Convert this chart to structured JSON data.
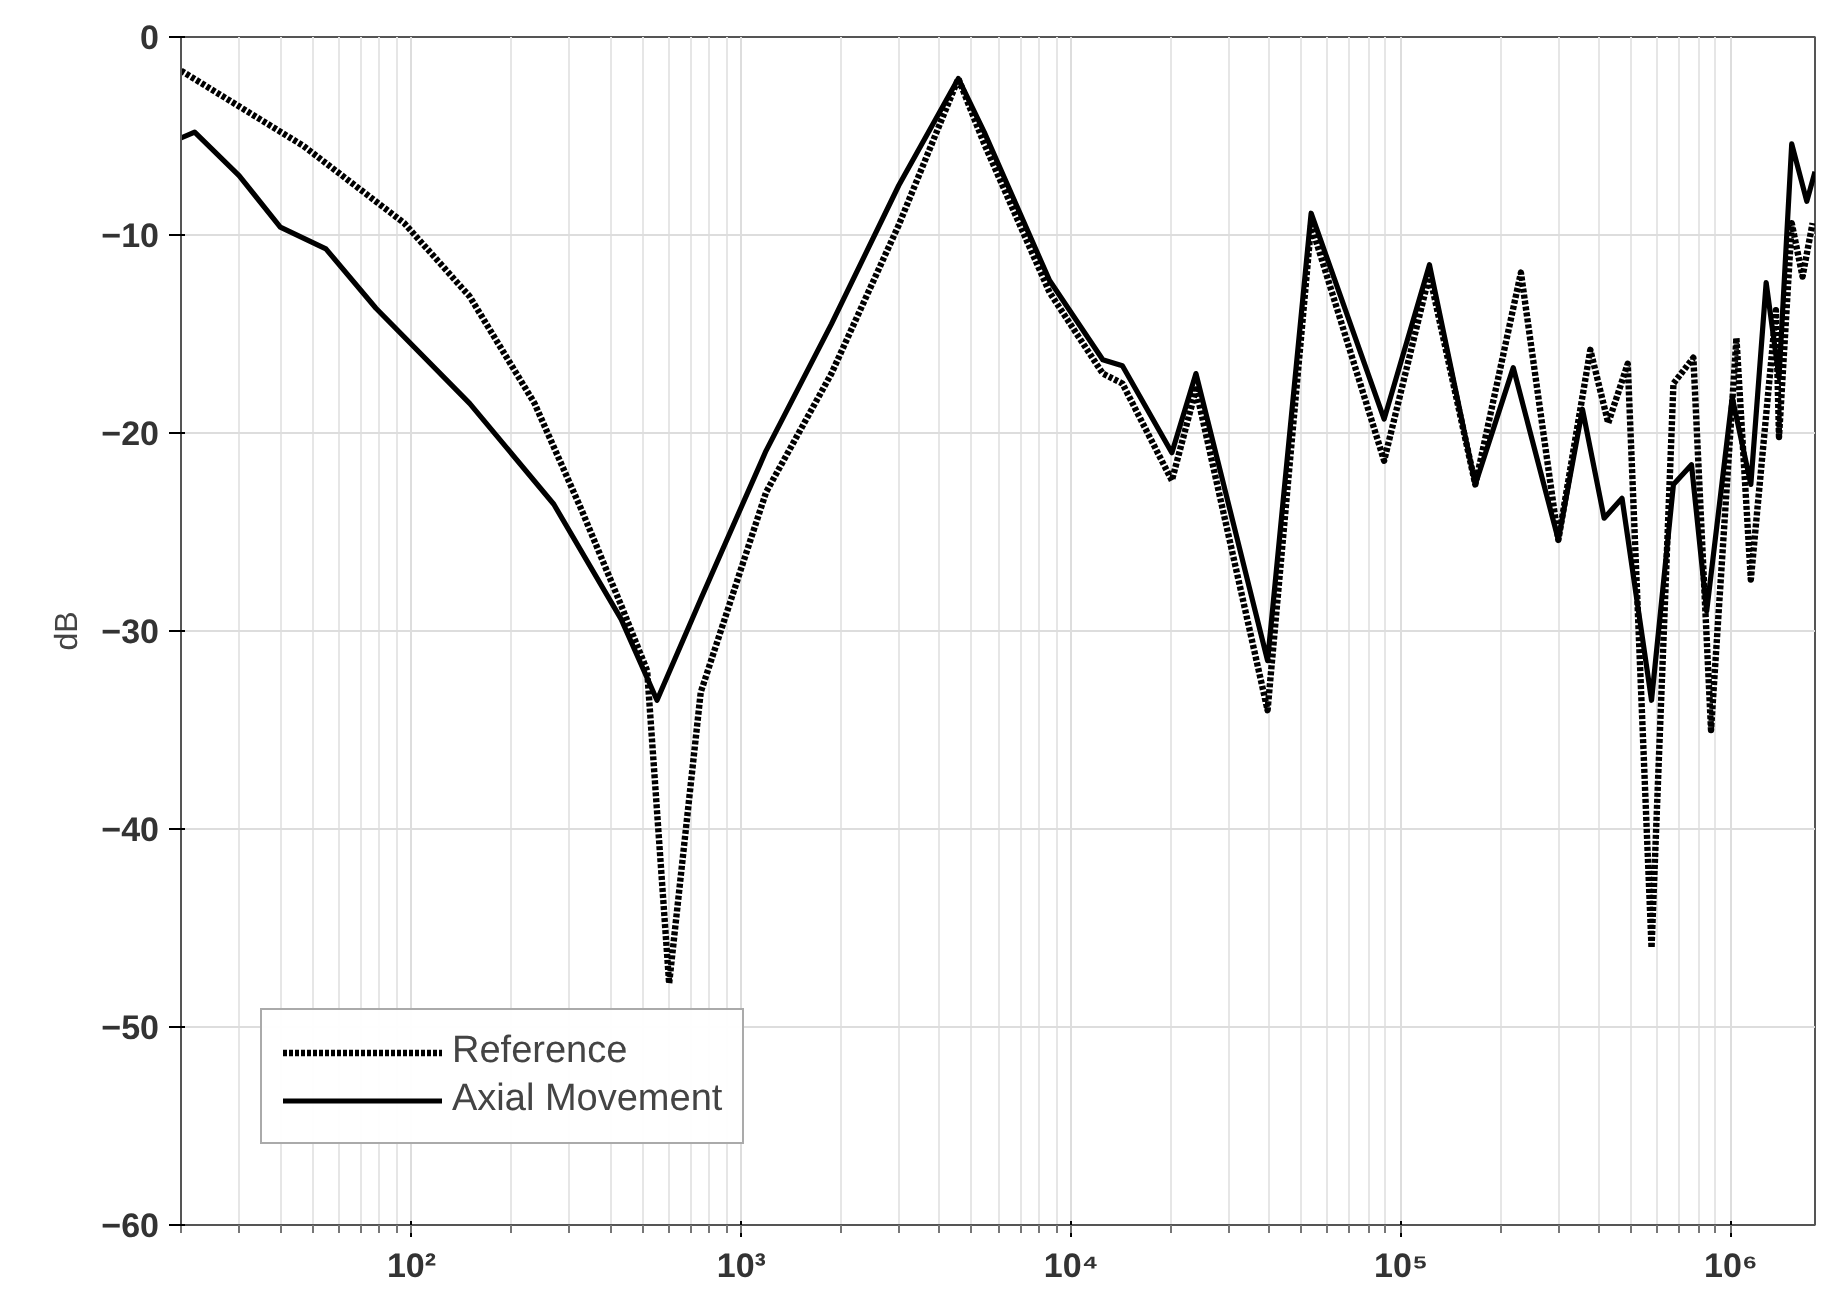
{
  "chart_data": {
    "type": "line",
    "ylabel": "dB",
    "xlim": [
      20,
      1800000
    ],
    "ylim": [
      -60,
      0
    ],
    "log": "x",
    "grid": true,
    "legend": "bottom left",
    "xticks": [
      {
        "value": 100,
        "label": "10²"
      },
      {
        "value": 1000,
        "label": "10³"
      },
      {
        "value": 10000,
        "label": "10⁴"
      },
      {
        "value": 100000,
        "label": "10⁵"
      },
      {
        "value": 1000000,
        "label": "10⁶"
      }
    ],
    "yticks": [
      -60,
      -50,
      -40,
      -30,
      -20,
      -10,
      0
    ],
    "series": [
      {
        "name": "Reference",
        "color": "#000000",
        "line_style": "dotted",
        "x": [
          20,
          47,
          95,
          150,
          236,
          328,
          432,
          518,
          604,
          753,
          1188,
          1875,
          3000,
          4550,
          5450,
          8600,
          12470,
          14300,
          20200,
          23900,
          39400,
          53400,
          88900,
          122000,
          168000,
          231000,
          300000,
          375000,
          425000,
          487000,
          575000,
          670000,
          770000,
          871000,
          1040000,
          1150000,
          1370000,
          1400000,
          1530000,
          1650000,
          1770000
        ],
        "values": [
          -1.7,
          -5.5,
          -9.4,
          -13.1,
          -18.5,
          -23.9,
          -28.7,
          -32,
          -47.8,
          -33.1,
          -23,
          -17,
          -9.5,
          -2.1,
          -5.4,
          -12.9,
          -17,
          -17.5,
          -22.4,
          -17.8,
          -34,
          -9.5,
          -21.4,
          -12,
          -22.6,
          -11.9,
          -25.4,
          -15.8,
          -19.5,
          -16.5,
          -46,
          -17.5,
          -16.2,
          -35,
          -15.2,
          -27.4,
          -13.8,
          -20.2,
          -9.4,
          -12.1,
          -9.4
        ]
      },
      {
        "name": "Axial Movement",
        "color": "#000000",
        "line_style": "solid",
        "x": [
          20,
          22,
          30,
          40,
          55,
          78,
          150,
          270,
          432,
          555,
          753,
          1188,
          1875,
          3000,
          4550,
          5450,
          8600,
          12470,
          14300,
          20200,
          23900,
          39400,
          53400,
          88900,
          122000,
          168000,
          219000,
          300000,
          355000,
          413000,
          468000,
          575000,
          670000,
          760000,
          845000,
          1010000,
          1150000,
          1280000,
          1400000,
          1530000,
          1700000,
          1800000
        ],
        "values": [
          -5.1,
          -4.8,
          -7,
          -9.6,
          -10.7,
          -13.7,
          -18.5,
          -23.6,
          -29.4,
          -33.5,
          -28.4,
          -20.9,
          -14.5,
          -7.5,
          -2.1,
          -4.8,
          -12.3,
          -16.3,
          -16.6,
          -21,
          -17,
          -31.5,
          -8.9,
          -19.3,
          -11.5,
          -22.6,
          -16.7,
          -25.4,
          -18.8,
          -24.3,
          -23.3,
          -33.5,
          -22.6,
          -21.6,
          -29,
          -18.2,
          -22.6,
          -12.4,
          -17.2,
          -5.4,
          -8.3,
          -6.8
        ]
      }
    ]
  }
}
